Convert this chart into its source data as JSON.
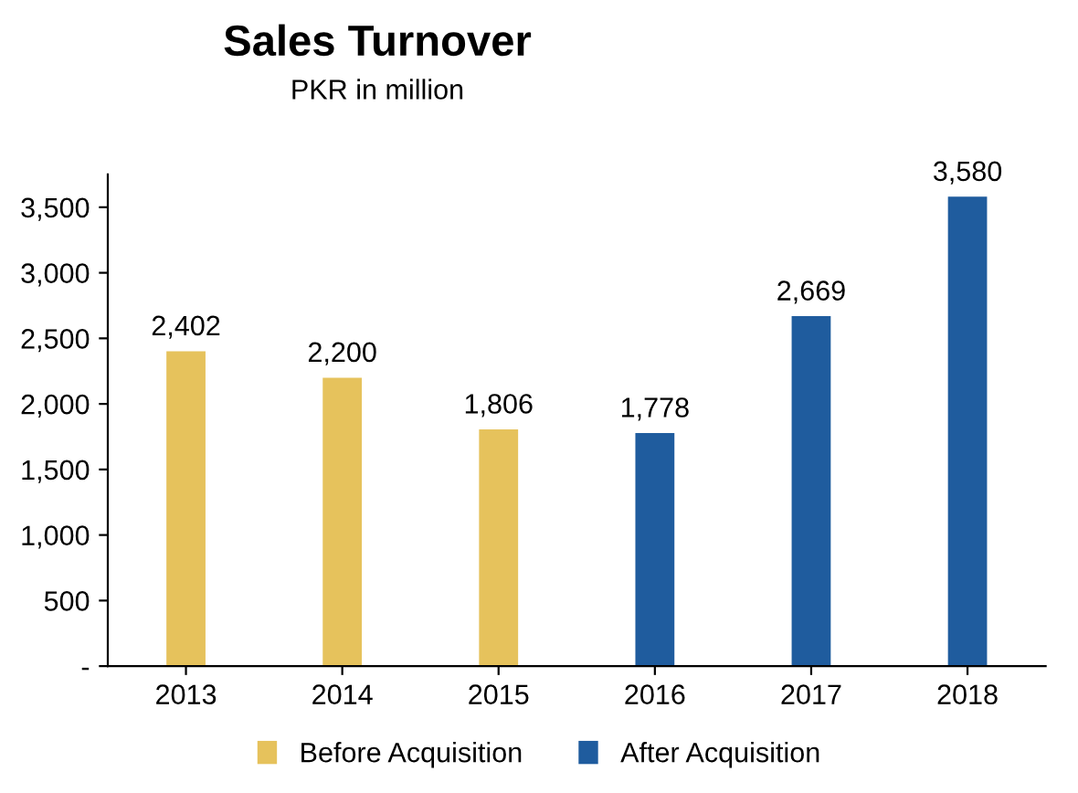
{
  "chart_data": {
    "type": "bar",
    "title": "Sales Turnover",
    "subtitle": "PKR in million",
    "categories": [
      "2013",
      "2014",
      "2015",
      "2016",
      "2017",
      "2018"
    ],
    "series": [
      {
        "name": "Before Acquisition",
        "color": "#e6c25c",
        "values": [
          2402,
          2200,
          1806,
          null,
          null,
          null
        ],
        "value_labels": [
          "2,402",
          "2,200",
          "1,806",
          null,
          null,
          null
        ]
      },
      {
        "name": "After Acquisition",
        "color": "#1f5c9e",
        "values": [
          null,
          null,
          null,
          1778,
          2669,
          3580
        ],
        "value_labels": [
          null,
          null,
          null,
          "1,778",
          "2,669",
          "3,580"
        ]
      }
    ],
    "ylim": [
      0,
      3750
    ],
    "yticks": [
      {
        "value": 0,
        "label": "-"
      },
      500,
      {
        "value": 1000,
        "label": "1,000"
      },
      {
        "value": 1500,
        "label": "1,500"
      },
      {
        "value": 2000,
        "label": "2,000"
      },
      {
        "value": 2500,
        "label": "2,500"
      },
      {
        "value": 3000,
        "label": "3,000"
      },
      {
        "value": 3500,
        "label": "3,500"
      }
    ],
    "grid": false,
    "legend": "bottom"
  }
}
